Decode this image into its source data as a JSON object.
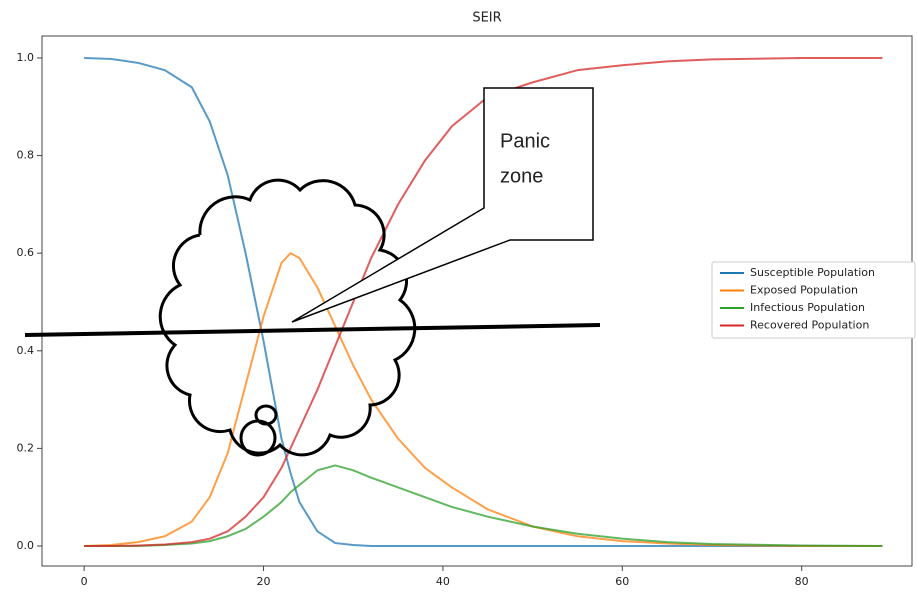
{
  "chart_data": {
    "type": "line",
    "title": "SEIR",
    "x": [
      0,
      3,
      6,
      9,
      12,
      14,
      16,
      18,
      20,
      22,
      23,
      24,
      26,
      28,
      30,
      32,
      35,
      38,
      41,
      45,
      50,
      55,
      60,
      65,
      70,
      80,
      89
    ],
    "series": [
      {
        "name": "Susceptible Population",
        "color": "#1f77b4",
        "values": [
          1.0,
          0.998,
          0.99,
          0.975,
          0.94,
          0.87,
          0.76,
          0.6,
          0.42,
          0.22,
          0.15,
          0.09,
          0.03,
          0.006,
          0.002,
          0,
          0,
          0,
          0,
          0,
          0,
          0,
          0,
          0,
          0,
          0,
          0
        ]
      },
      {
        "name": "Exposed Population",
        "color": "#ff7f0e",
        "values": [
          0,
          0.002,
          0.008,
          0.02,
          0.05,
          0.1,
          0.19,
          0.33,
          0.47,
          0.58,
          0.6,
          0.59,
          0.53,
          0.45,
          0.37,
          0.3,
          0.22,
          0.16,
          0.12,
          0.075,
          0.04,
          0.02,
          0.01,
          0.005,
          0.002,
          0,
          0
        ]
      },
      {
        "name": "Infectious Population",
        "color": "#2ca02c",
        "values": [
          0,
          0,
          0,
          0.002,
          0.005,
          0.01,
          0.02,
          0.035,
          0.06,
          0.09,
          0.11,
          0.125,
          0.155,
          0.165,
          0.155,
          0.14,
          0.12,
          0.1,
          0.08,
          0.06,
          0.04,
          0.025,
          0.015,
          0.008,
          0.004,
          0.001,
          0
        ]
      },
      {
        "name": "Recovered Population",
        "color": "#d62728",
        "values": [
          0,
          0,
          0.001,
          0.003,
          0.008,
          0.015,
          0.03,
          0.06,
          0.1,
          0.16,
          0.2,
          0.24,
          0.32,
          0.41,
          0.5,
          0.59,
          0.7,
          0.79,
          0.86,
          0.92,
          0.95,
          0.975,
          0.985,
          0.993,
          0.997,
          1.0,
          1.0
        ]
      }
    ],
    "xlim": [
      -4.7,
      92.3
    ],
    "xticks": [
      0,
      20,
      40,
      60,
      80
    ],
    "ylim": [
      -0.041,
      1.045
    ],
    "yticks": [
      {
        "value": 0,
        "label": "0.0"
      },
      0.2,
      0.4,
      0.6,
      0.8,
      {
        "value": 1,
        "label": "1.0"
      }
    ],
    "legend": "right",
    "annotation_lines": [
      "Panic",
      "zone"
    ]
  }
}
